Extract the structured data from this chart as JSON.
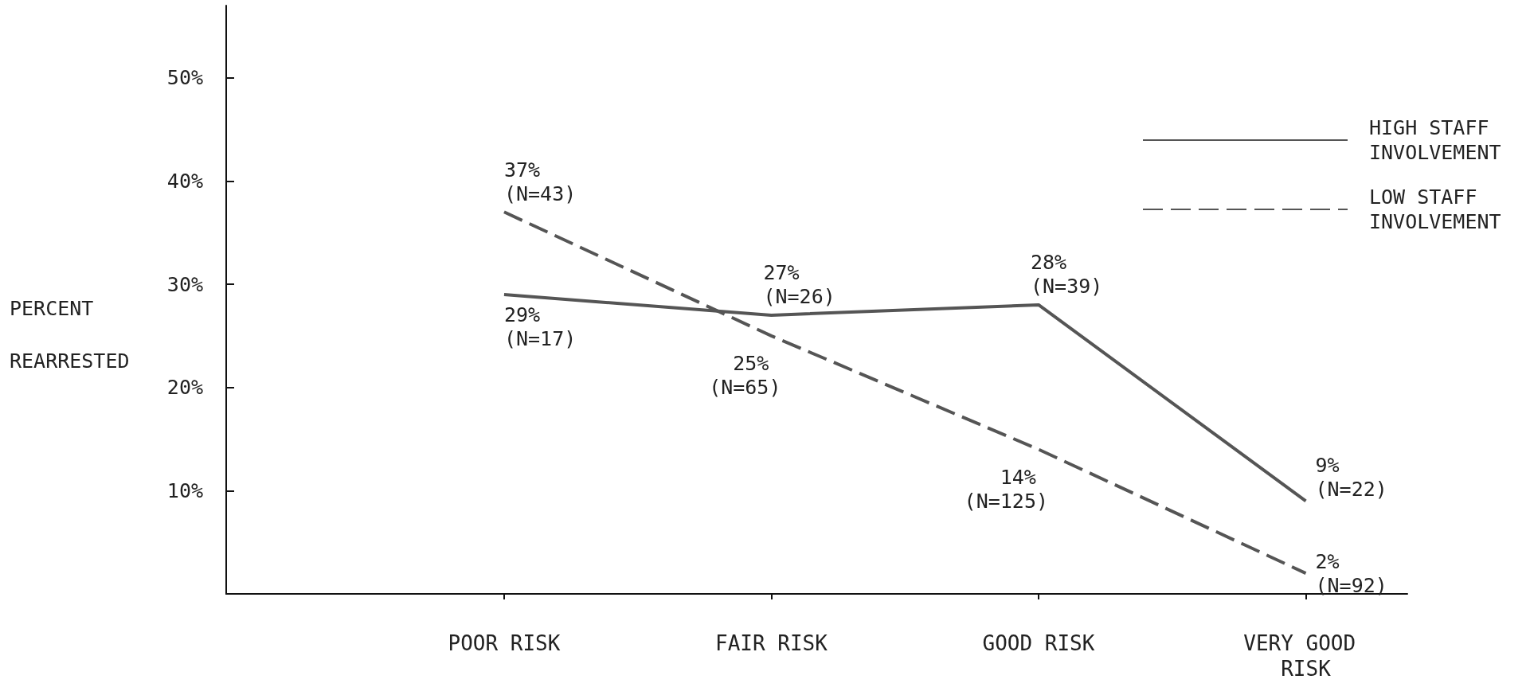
{
  "chart_data": {
    "type": "line",
    "ylabel": "PERCENT REARRESTED",
    "categories": [
      "POOR RISK",
      "FAIR RISK",
      "GOOD RISK",
      "VERY GOOD RISK"
    ],
    "series": [
      {
        "name": "HIGH STAFF INVOLVEMENT",
        "color": "#555555",
        "line_style": "solid",
        "values": [
          29,
          27,
          28,
          9
        ],
        "value_labels": [
          "29% (N=17)",
          "27% (N=26)",
          "28% (N=39)",
          "9% (N=22)"
        ]
      },
      {
        "name": "LOW STAFF INVOLVEMENT",
        "color": "#555555",
        "line_style": "dashed",
        "values": [
          37,
          25,
          14,
          2
        ],
        "value_labels": [
          "37% (N=43)",
          "25% (N=65)",
          "14% (N=125)",
          "2% (N=92)"
        ]
      }
    ],
    "ylim": [
      0,
      57
    ],
    "yticks": [
      {
        "value": 10,
        "label": "10%"
      },
      {
        "value": 20,
        "label": "20%"
      },
      {
        "value": 30,
        "label": "30%"
      },
      {
        "value": 40,
        "label": "40%"
      },
      {
        "value": 50,
        "label": "50%"
      }
    ],
    "legend": "top right"
  }
}
